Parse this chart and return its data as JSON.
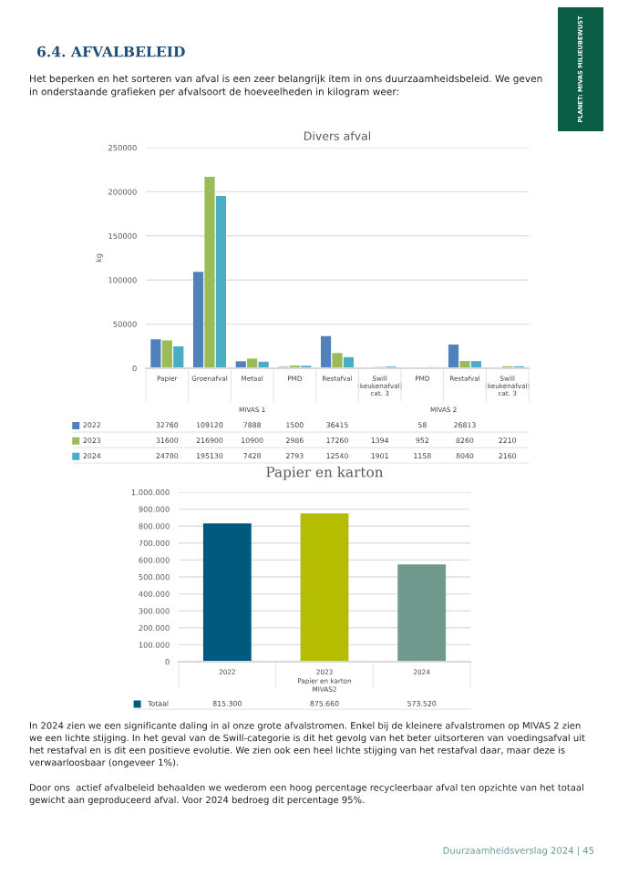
{
  "chart_data": [
    {
      "type": "bar",
      "title": "Divers afval",
      "ylabel": "kg",
      "categories": [
        "Papier",
        "Groenafval",
        "Metaal",
        "PMD",
        "Restafval",
        "Swill (keukenafval) cat. 3",
        "PMD",
        "Restafval",
        "Swill (keukenafval) cat. 3"
      ],
      "series": [
        {
          "name": "2022",
          "color": "#4f81bd",
          "values": [
            32760,
            109120,
            7888,
            1500,
            36415,
            null,
            58,
            26813,
            null
          ],
          "value_labels": [
            "32760",
            "109120",
            "7888",
            "1500",
            "36415",
            null,
            "58",
            "26813",
            null
          ]
        },
        {
          "name": "2023",
          "color": "#9bbb59",
          "values": [
            31600,
            216900,
            10900,
            2986,
            17260,
            1394,
            952,
            8260,
            2210
          ],
          "value_labels": [
            "31600",
            "216900",
            "10900",
            "2986",
            "17260",
            "1394",
            "952",
            "8260",
            "2210"
          ]
        },
        {
          "name": "2024",
          "color": "#4bacc6",
          "values": [
            24780,
            195130,
            7428,
            2793,
            12540,
            1901,
            1158,
            8040,
            2160
          ],
          "value_labels": [
            "24780",
            "195130",
            "7428",
            "2793",
            "12540",
            "1901",
            "1158",
            "8040",
            "2160"
          ]
        }
      ],
      "legend": "bottom left",
      "ylim": [
        0,
        250000
      ],
      "yticks": [
        0,
        50000,
        100000,
        150000,
        200000,
        250000
      ],
      "grid": "y",
      "annotations": [
        "6.4. AFVALBELEID",
        "Het beperken en het sorteren van afval is een zeer belangrijk item in ons duurzaamheidsbeleid. We geven in onderstaande grafieken per afvalsoort de hoeveelheden in kilogram weer:",
        "PLANET: MIVAS MILIEUBEWUST",
        "MIVAS 1",
        "MIVAS 2"
      ]
    },
    {
      "type": "bar",
      "title": "Papier en karton",
      "xlabel": "Papier en karton\nMIVAS2",
      "categories": [
        "2022",
        "2023",
        "2024"
      ],
      "series": [
        {
          "name": "Totaal",
          "colors": [
            "#005a7e",
            "#b5bd00",
            "#6f9a8d"
          ],
          "values": [
            815300,
            875660,
            573520
          ],
          "value_labels": [
            "815.300",
            "875.660",
            "573.520"
          ]
        }
      ],
      "legend": "bottom left",
      "ylim": [
        0,
        1000000
      ],
      "yticks": [
        {
          "value": 0,
          "label": "0"
        },
        {
          "value": 100000,
          "label": "100.000"
        },
        {
          "value": 200000,
          "label": "200.000"
        },
        {
          "value": 300000,
          "label": "300.000"
        },
        {
          "value": 400000,
          "label": "400.000"
        },
        {
          "value": 500000,
          "label": "500.000"
        },
        {
          "value": 600000,
          "label": "600.000"
        },
        {
          "value": 700000,
          "label": "700.000"
        },
        {
          "value": 800000,
          "label": "800.000"
        },
        {
          "value": 900000,
          "label": "900.000"
        },
        {
          "value": 1000000,
          "label": "1.000.000"
        }
      ],
      "grid": "y",
      "annotations": [
        "In 2024 zien we een significante daling in al onze grote afvalstromen. Enkel bij de kleinere afvalstromen op MIVAS 2 zien we een lichte stijging. In het geval van de Swill-categorie is dit het gevolg van het beter uitsorteren van voedingsafval uit het restafval en is dit een positieve evolutie. We zien ook een heel lichte stijging van het restafval daar, maar deze is verwaarloosbaar (ongeveer 1%).",
        "Door ons  actief afvalbeleid behaalden we wederom een hoog percentage recycleerbaar afval ten opzichte van het totaal gewicht aan geproduceerd afval. Voor 2024 bedroeg dit percentage 95%.",
        "Duurzaamheidsverslag 2024 | 45"
      ]
    }
  ]
}
